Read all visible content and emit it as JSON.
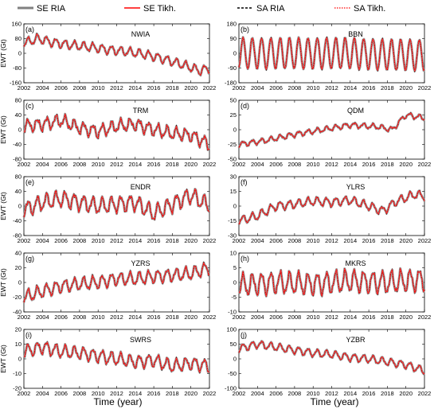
{
  "legend": [
    {
      "label": "SE RIA",
      "color": "#808080",
      "style": "solid-thick"
    },
    {
      "label": "SE Tikh.",
      "color": "#ff0000",
      "style": "solid"
    },
    {
      "label": "SA RIA",
      "color": "#000000",
      "style": "dashed"
    },
    {
      "label": "SA Tikh.",
      "color": "#ff0000",
      "style": "dotted"
    }
  ],
  "xlabel": "Time (year)",
  "ylabel": "EWT (Gt)",
  "x_ticks": [
    2002,
    2004,
    2006,
    2008,
    2010,
    2012,
    2014,
    2016,
    2018,
    2020,
    2022
  ],
  "chart_data": [
    {
      "type": "line",
      "tag": "(a)",
      "title": "NWIA",
      "ylim": [
        -160,
        160
      ],
      "yticks": [
        -160,
        -80,
        0,
        80,
        160
      ],
      "x": [
        2002,
        2003.5,
        2005,
        2007,
        2009,
        2011,
        2013,
        2015,
        2017,
        2019,
        2021,
        2022
      ],
      "trend": [
        55,
        80,
        60,
        45,
        35,
        20,
        10,
        -5,
        -30,
        -60,
        -95,
        -80
      ],
      "amp": 22,
      "noise": 8
    },
    {
      "type": "line",
      "tag": "(b)",
      "title": "BBN",
      "ylim": [
        -180,
        180
      ],
      "yticks": [
        -180,
        -90,
        0,
        90,
        180
      ],
      "x": [
        2002,
        2006,
        2010,
        2014,
        2018,
        2022
      ],
      "trend": [
        0,
        0,
        0,
        0,
        -10,
        -10
      ],
      "amp": 95,
      "noise": 5
    },
    {
      "type": "line",
      "tag": "(c)",
      "title": "TRM",
      "ylim": [
        -80,
        80
      ],
      "yticks": [
        -80,
        -40,
        0,
        40,
        80
      ],
      "x": [
        2002,
        2004,
        2006,
        2008,
        2010,
        2012,
        2014,
        2016,
        2018,
        2020,
        2022
      ],
      "trend": [
        10,
        15,
        25,
        5,
        -5,
        10,
        15,
        0,
        -10,
        -15,
        -40
      ],
      "amp": 15,
      "noise": 8
    },
    {
      "type": "line",
      "tag": "(d)",
      "title": "QDM",
      "ylim": [
        -50,
        50
      ],
      "yticks": [
        -50,
        -25,
        0,
        25,
        50
      ],
      "x": [
        2002,
        2005,
        2008,
        2011,
        2014,
        2017,
        2018.5,
        2020,
        2022
      ],
      "trend": [
        -25,
        -18,
        -8,
        0,
        8,
        5,
        0,
        25,
        20
      ],
      "amp": 4,
      "noise": 2
    },
    {
      "type": "line",
      "tag": "(e)",
      "title": "ENDR",
      "ylim": [
        -80,
        80
      ],
      "yticks": [
        -80,
        -40,
        0,
        40,
        80
      ],
      "x": [
        2002,
        2004,
        2006,
        2008,
        2010,
        2012,
        2014,
        2016,
        2018,
        2020,
        2022
      ],
      "trend": [
        -10,
        10,
        20,
        10,
        0,
        5,
        10,
        -20,
        5,
        30,
        0
      ],
      "amp": 20,
      "noise": 8
    },
    {
      "type": "line",
      "tag": "(f)",
      "title": "YLRS",
      "ylim": [
        -30,
        30
      ],
      "yticks": [
        -30,
        -15,
        0,
        15,
        30
      ],
      "x": [
        2002,
        2004,
        2006,
        2008,
        2010,
        2012,
        2014,
        2016,
        2017.5,
        2019,
        2021,
        2022
      ],
      "trend": [
        -15,
        -10,
        0,
        2,
        5,
        4,
        6,
        0,
        -5,
        5,
        12,
        10
      ],
      "amp": 4,
      "noise": 1.5
    },
    {
      "type": "line",
      "tag": "(g)",
      "title": "YZRS",
      "ylim": [
        -40,
        40
      ],
      "yticks": [
        -40,
        -20,
        0,
        20,
        40
      ],
      "x": [
        2002,
        2004,
        2006,
        2008,
        2010,
        2012,
        2014,
        2016,
        2018,
        2020,
        2022
      ],
      "trend": [
        -20,
        -12,
        -5,
        -2,
        0,
        5,
        5,
        8,
        10,
        12,
        20
      ],
      "amp": 8,
      "noise": 3
    },
    {
      "type": "line",
      "tag": "(h)",
      "title": "MKRS",
      "ylim": [
        -10,
        10
      ],
      "yticks": [
        -10,
        -5,
        0,
        5,
        10
      ],
      "x": [
        2002,
        2006,
        2010,
        2014,
        2018,
        2022
      ],
      "trend": [
        -1,
        0,
        -0.5,
        0.5,
        0,
        1
      ],
      "amp": 3.5,
      "noise": 1.2
    },
    {
      "type": "line",
      "tag": "(i)",
      "title": "SWRS",
      "ylim": [
        -20,
        20
      ],
      "yticks": [
        -20,
        -10,
        0,
        10,
        20
      ],
      "x": [
        2002,
        2004,
        2006,
        2008,
        2010,
        2012,
        2014,
        2016,
        2018,
        2020,
        2022
      ],
      "trend": [
        5,
        8,
        5,
        4,
        2,
        0,
        -2,
        -1,
        -5,
        -3,
        -5
      ],
      "amp": 4,
      "noise": 1.5
    },
    {
      "type": "line",
      "tag": "(j)",
      "title": "YZBR",
      "ylim": [
        -100,
        100
      ],
      "yticks": [
        -100,
        -50,
        0,
        50,
        100
      ],
      "x": [
        2002,
        2004,
        2006,
        2008,
        2010,
        2012,
        2014,
        2016,
        2018,
        2020,
        2022
      ],
      "trend": [
        35,
        50,
        40,
        30,
        20,
        15,
        5,
        0,
        -10,
        -20,
        -40
      ],
      "amp": 12,
      "noise": 4
    }
  ]
}
